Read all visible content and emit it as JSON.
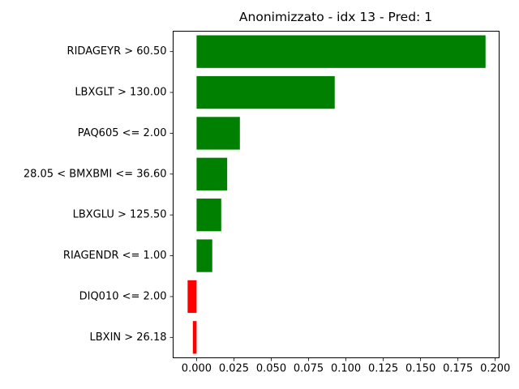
{
  "chart_data": {
    "type": "bar",
    "orientation": "horizontal",
    "title": "Anonimizzato - idx 13 - Pred: 1",
    "xlabel": "",
    "ylabel": "",
    "categories": [
      "RIDAGEYR > 60.50",
      "LBXGLT > 130.00",
      "PAQ605 <= 2.00",
      "28.05 < BMXBMI <= 36.60",
      "LBXGLU > 125.50",
      "RIAGENDR <= 1.00",
      "DIQ010 <= 2.00",
      "LBXIN > 26.18"
    ],
    "values": [
      0.1935,
      0.0925,
      0.029,
      0.0205,
      0.0165,
      0.0105,
      -0.006,
      -0.0025
    ],
    "xlim": [
      -0.0157,
      0.2026
    ],
    "xticks": [
      0.0,
      0.025,
      0.05,
      0.075,
      0.1,
      0.125,
      0.15,
      0.175,
      0.2
    ],
    "xtick_labels": [
      "0.000",
      "0.025",
      "0.050",
      "0.075",
      "0.100",
      "0.125",
      "0.150",
      "0.175",
      "0.200"
    ],
    "grid": false,
    "colors": {
      "positive": "#008000",
      "negative": "#ff0000"
    }
  }
}
